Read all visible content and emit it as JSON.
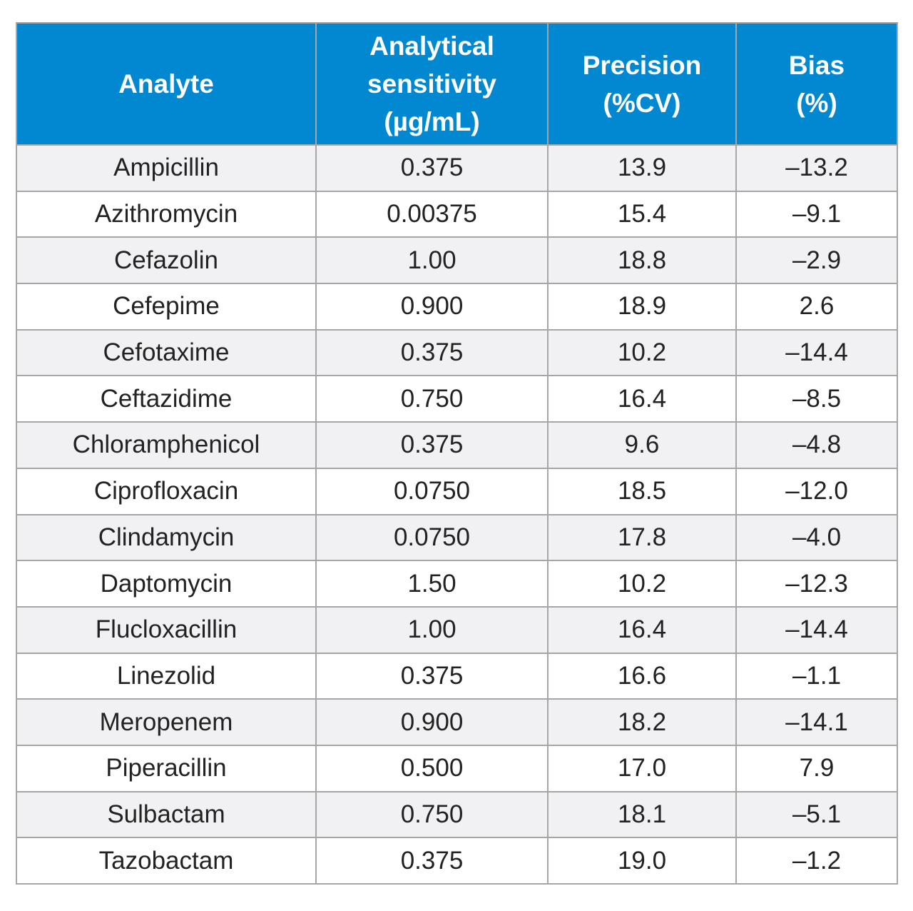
{
  "table": {
    "headers": [
      [
        "Analyte"
      ],
      [
        "Analytical",
        "sensitivity",
        "(µg/mL)"
      ],
      [
        "Precision",
        "(%CV)"
      ],
      [
        "Bias",
        "(%)"
      ]
    ],
    "rows": [
      [
        "Ampicillin",
        "0.375",
        "13.9",
        "–13.2"
      ],
      [
        "Azithromycin",
        "0.00375",
        "15.4",
        "–9.1"
      ],
      [
        "Cefazolin",
        "1.00",
        "18.8",
        "–2.9"
      ],
      [
        "Cefepime",
        "0.900",
        "18.9",
        "2.6"
      ],
      [
        "Cefotaxime",
        "0.375",
        "10.2",
        "–14.4"
      ],
      [
        "Ceftazidime",
        "0.750",
        "16.4",
        "–8.5"
      ],
      [
        "Chloramphenicol",
        "0.375",
        "9.6",
        "–4.8"
      ],
      [
        "Ciprofloxacin",
        "0.0750",
        "18.5",
        "–12.0"
      ],
      [
        "Clindamycin",
        "0.0750",
        "17.8",
        "–4.0"
      ],
      [
        "Daptomycin",
        "1.50",
        "10.2",
        "–12.3"
      ],
      [
        "Flucloxacillin",
        "1.00",
        "16.4",
        "–14.4"
      ],
      [
        "Linezolid",
        "0.375",
        "16.6",
        "–1.1"
      ],
      [
        "Meropenem",
        "0.900",
        "18.2",
        "–14.1"
      ],
      [
        "Piperacillin",
        "0.500",
        "17.0",
        "7.9"
      ],
      [
        "Sulbactam",
        "0.750",
        "18.1",
        "–5.1"
      ],
      [
        "Tazobactam",
        "0.375",
        "19.0",
        "–1.2"
      ]
    ]
  },
  "colors": {
    "header_bg": "#0288d1",
    "header_text": "#ffffff",
    "row_alt_bg": "#f1f1f3",
    "border": "#a6a6a6"
  }
}
